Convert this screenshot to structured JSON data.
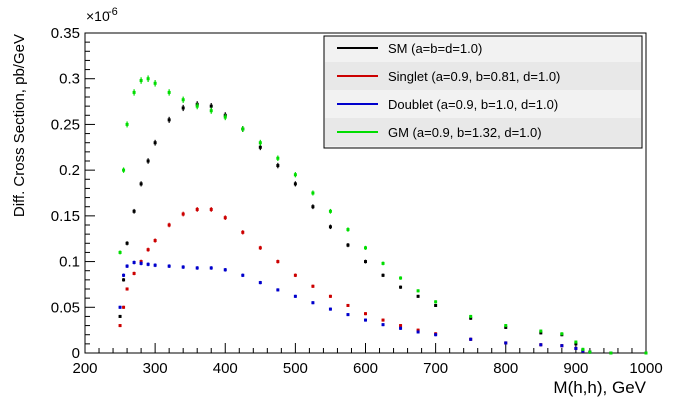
{
  "chart_data": {
    "type": "scatter",
    "title": "",
    "xlabel": "M(h,h), GeV",
    "ylabel": "Diff. Cross Section, pb/GeV",
    "y_exponent_label": "×10",
    "y_exponent_power": "-6",
    "xlim": [
      200,
      1000
    ],
    "ylim": [
      0,
      0.35
    ],
    "x_ticks": [
      "200",
      "300",
      "400",
      "500",
      "600",
      "700",
      "800",
      "900",
      "1000"
    ],
    "y_ticks": [
      "0",
      "0.05",
      "0.1",
      "0.15",
      "0.2",
      "0.25",
      "0.3",
      "0.35"
    ],
    "grid": false,
    "legend_position": "top-right",
    "legend_background": "#f2f2f2",
    "series": [
      {
        "name": "SM (a=b=d=1.0)",
        "color": "#000000",
        "x": [
          250,
          255,
          260,
          270,
          280,
          290,
          300,
          320,
          340,
          360,
          380,
          400,
          425,
          450,
          475,
          500,
          525,
          550,
          575,
          600,
          625,
          650,
          675,
          700,
          750,
          800,
          850,
          880,
          900,
          910,
          920,
          950,
          1000
        ],
        "y": [
          0.04,
          0.08,
          0.12,
          0.155,
          0.185,
          0.21,
          0.23,
          0.255,
          0.268,
          0.272,
          0.27,
          0.26,
          0.245,
          0.225,
          0.205,
          0.185,
          0.16,
          0.138,
          0.118,
          0.1,
          0.085,
          0.072,
          0.062,
          0.052,
          0.038,
          0.028,
          0.022,
          0.02,
          0.01,
          0.003,
          0.001,
          0.0,
          0.0
        ]
      },
      {
        "name": "Singlet (a=0.9, b=0.81, d=1.0)",
        "color": "#cc0000",
        "x": [
          250,
          255,
          260,
          270,
          280,
          290,
          300,
          320,
          340,
          360,
          380,
          400,
          425,
          450,
          475,
          500,
          525,
          550,
          575,
          600,
          625,
          650,
          675,
          700,
          750,
          800,
          850,
          880,
          900,
          910,
          920,
          950,
          1000
        ],
        "y": [
          0.03,
          0.05,
          0.07,
          0.087,
          0.1,
          0.113,
          0.123,
          0.14,
          0.152,
          0.157,
          0.157,
          0.148,
          0.132,
          0.115,
          0.1,
          0.085,
          0.073,
          0.062,
          0.052,
          0.043,
          0.036,
          0.03,
          0.025,
          0.021,
          0.015,
          0.011,
          0.009,
          0.008,
          0.005,
          0.002,
          0.001,
          0.0,
          0.0
        ]
      },
      {
        "name": "Doublet (a=0.9, b=1.0, d=1.0)",
        "color": "#0000cc",
        "x": [
          250,
          255,
          260,
          270,
          280,
          290,
          300,
          320,
          340,
          360,
          380,
          400,
          425,
          450,
          475,
          500,
          525,
          550,
          575,
          600,
          625,
          650,
          675,
          700,
          750,
          800,
          850,
          880,
          900,
          910,
          920,
          950,
          1000
        ],
        "y": [
          0.05,
          0.085,
          0.095,
          0.099,
          0.098,
          0.097,
          0.096,
          0.095,
          0.094,
          0.093,
          0.093,
          0.091,
          0.085,
          0.077,
          0.069,
          0.062,
          0.055,
          0.048,
          0.042,
          0.036,
          0.031,
          0.027,
          0.023,
          0.02,
          0.015,
          0.011,
          0.009,
          0.008,
          0.005,
          0.002,
          0.001,
          0.0,
          0.0
        ]
      },
      {
        "name": "GM (a=0.9, b=1.32, d=1.0)",
        "color": "#00dd00",
        "x": [
          250,
          255,
          260,
          270,
          280,
          290,
          300,
          320,
          340,
          360,
          380,
          400,
          425,
          450,
          475,
          500,
          525,
          550,
          575,
          600,
          625,
          650,
          675,
          700,
          750,
          800,
          850,
          880,
          900,
          910,
          920,
          950,
          1000
        ],
        "y": [
          0.11,
          0.2,
          0.25,
          0.285,
          0.298,
          0.3,
          0.295,
          0.285,
          0.277,
          0.27,
          0.265,
          0.258,
          0.245,
          0.23,
          0.213,
          0.195,
          0.175,
          0.155,
          0.135,
          0.115,
          0.098,
          0.082,
          0.068,
          0.056,
          0.04,
          0.03,
          0.024,
          0.021,
          0.012,
          0.004,
          0.001,
          0.0,
          0.0
        ]
      }
    ]
  }
}
